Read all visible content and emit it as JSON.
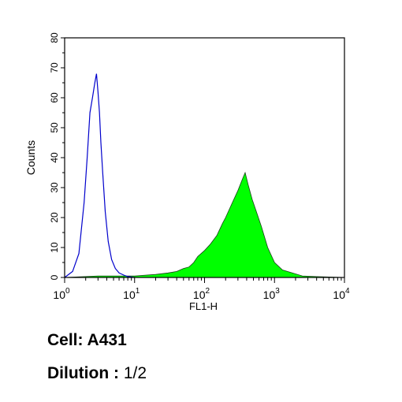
{
  "chart_data": {
    "type": "area",
    "title": "",
    "xlabel": "FL1-H",
    "ylabel": "Counts",
    "xscale": "log",
    "xlim": [
      1,
      10000
    ],
    "ylim": [
      0,
      80
    ],
    "y_ticks": [
      0,
      10,
      20,
      30,
      40,
      50,
      60,
      70,
      80
    ],
    "x_ticks": [
      {
        "value": 1,
        "base": "10",
        "exp": "0"
      },
      {
        "value": 10,
        "base": "10",
        "exp": "1"
      },
      {
        "value": 100,
        "base": "10",
        "exp": "2"
      },
      {
        "value": 1000,
        "base": "10",
        "exp": "3"
      },
      {
        "value": 10000,
        "base": "10",
        "exp": "4"
      }
    ],
    "grid": false,
    "series": [
      {
        "style": "outline",
        "color": "#0000cc",
        "x": [
          1,
          1.3,
          1.6,
          1.9,
          2.1,
          2.3,
          2.5,
          2.7,
          2.85,
          3.0,
          3.15,
          3.3,
          3.5,
          3.8,
          4.2,
          4.7,
          5.3,
          6.0,
          7.0,
          8.0,
          10
        ],
        "y": [
          0,
          2,
          8,
          25,
          40,
          55,
          60,
          65,
          68,
          62,
          55,
          45,
          35,
          22,
          12,
          6,
          3,
          1.5,
          0.8,
          0.3,
          0
        ]
      },
      {
        "style": "filled",
        "color": "#00ff00",
        "x": [
          1,
          3,
          10,
          20,
          30,
          40,
          50,
          60,
          70,
          80,
          100,
          120,
          150,
          180,
          200,
          250,
          300,
          350,
          380,
          420,
          480,
          550,
          650,
          800,
          1000,
          1300,
          1800,
          2500,
          4000,
          10000
        ],
        "y": [
          0,
          0.5,
          0.5,
          1,
          1.5,
          2,
          3,
          3.5,
          5,
          7,
          9,
          11,
          14,
          18,
          20,
          25,
          29,
          33,
          35,
          31,
          26,
          22,
          17,
          10,
          5,
          2.5,
          1.5,
          0.5,
          0.3,
          0
        ]
      }
    ]
  },
  "captions": {
    "cell_label": "Cell: A431",
    "dilution_label": "Dilution :",
    "dilution_value": " 1/2"
  }
}
